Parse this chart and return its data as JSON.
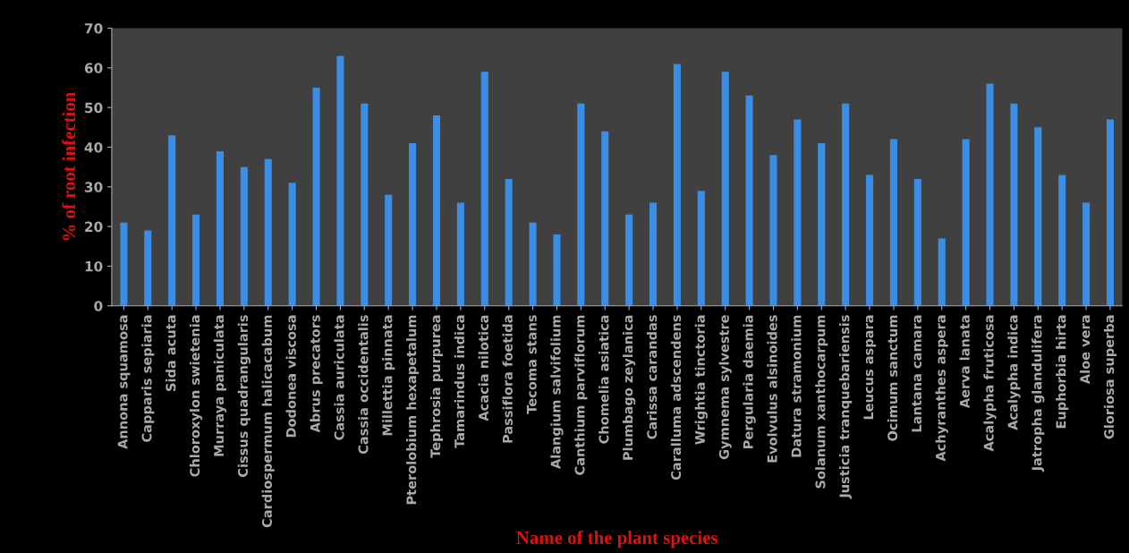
{
  "chart_data": {
    "type": "bar",
    "xlabel": "Name of the plant species",
    "ylabel": "% of root infection",
    "categories": [
      "Annona squamosa",
      "Capparis sepiaria",
      "Sida acuta",
      "Chloroxylon swietenia",
      "Murraya paniculata",
      "Cissus quadrangularis",
      "Cardiospermum halicacabum",
      "Dodonea viscosa",
      "Abrus precators",
      "Cassia auriculata",
      "Cassia occidentalis",
      "Millettia pinnata",
      "Pterolobium hexapetalum",
      "Tephrosia purpurea",
      "Tamarindus indica",
      "Acacia nilotica",
      "Passiflora foetida",
      "Tecoma stans",
      "Alangium salvifolium",
      "Canthium parviflorum",
      "Chomelia asiatica",
      "Plumbago zeylanica",
      "Carissa carandas",
      "Caralluma adscendens",
      "Wrightia tinctoria",
      "Gymnema sylvestre",
      "Pergularia daemia",
      "Evolvulus alsinoides",
      "Datura stramonium",
      "Solanum xanthocarpum",
      "Justicia tranquebariensis",
      "Leucus aspara",
      "Ocimum sanctum",
      "Lantana camara",
      "Achyranthes aspera",
      "Aerva lanata",
      "Acalypha fruticosa",
      "Acalypha indica",
      "Jatropha glandulifera",
      "Euphorbia hirta",
      "Aloe vera",
      "Gloriosa superba"
    ],
    "values": [
      21,
      19,
      43,
      23,
      39,
      35,
      37,
      31,
      55,
      63,
      51,
      28,
      41,
      48,
      26,
      59,
      32,
      21,
      18,
      51,
      44,
      23,
      26,
      61,
      29,
      59,
      53,
      38,
      47,
      41,
      51,
      33,
      42,
      32,
      17,
      42,
      56,
      51,
      45,
      33,
      26,
      47
    ],
    "color": "#3a8ee6",
    "ylim": [
      0,
      70
    ],
    "yticks": [
      0,
      10,
      20,
      30,
      40,
      50,
      60,
      70
    ],
    "grid": false,
    "legend": false
  }
}
